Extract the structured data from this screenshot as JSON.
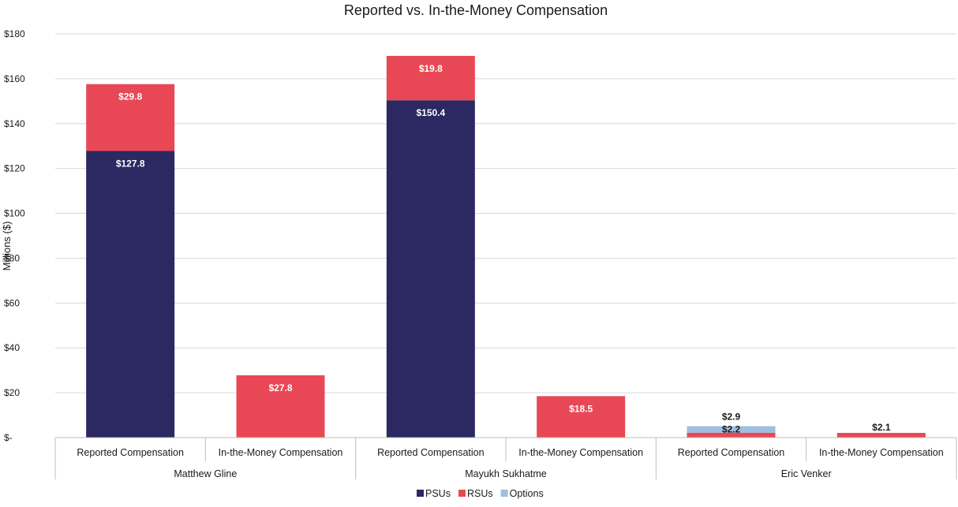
{
  "chart_data": {
    "type": "bar",
    "stacked": true,
    "title": "Reported vs. In-the-Money Compensation",
    "ylabel": "Millions ($)",
    "xlabel": "",
    "ylim": [
      0,
      180
    ],
    "yticks": [
      0,
      20,
      40,
      60,
      80,
      100,
      120,
      140,
      160,
      180
    ],
    "ytick_labels": [
      "$-",
      "$20",
      "$40",
      "$60",
      "$80",
      "$100",
      "$120",
      "$140",
      "$160",
      "$180"
    ],
    "grid": true,
    "legend_position": "bottom",
    "groups": [
      {
        "name": "Matthew Gline",
        "categories": [
          "Reported Compensation",
          "In-the-Money Compensation"
        ]
      },
      {
        "name": "Mayukh Sukhatme",
        "categories": [
          "Reported Compensation",
          "In-the-Money Compensation"
        ]
      },
      {
        "name": "Eric Venker",
        "categories": [
          "Reported Compensation",
          "In-the-Money Compensation"
        ]
      }
    ],
    "series": [
      {
        "name": "PSUs",
        "color": "#2b2862",
        "values": [
          127.8,
          0,
          150.4,
          0,
          0,
          0
        ],
        "labels": [
          "$127.8",
          "",
          "$150.4",
          "",
          "",
          ""
        ]
      },
      {
        "name": "RSUs",
        "color": "#e84855",
        "values": [
          29.8,
          27.8,
          19.8,
          18.5,
          2.2,
          2.1
        ],
        "labels": [
          "$29.8",
          "$27.8",
          "$19.8",
          "$18.5",
          "$2.2",
          "$2.1"
        ]
      },
      {
        "name": "Options",
        "color": "#9dbfe0",
        "values": [
          0,
          0,
          0,
          0,
          2.9,
          0
        ],
        "labels": [
          "",
          "",
          "",
          "",
          "$2.9",
          ""
        ]
      }
    ]
  }
}
